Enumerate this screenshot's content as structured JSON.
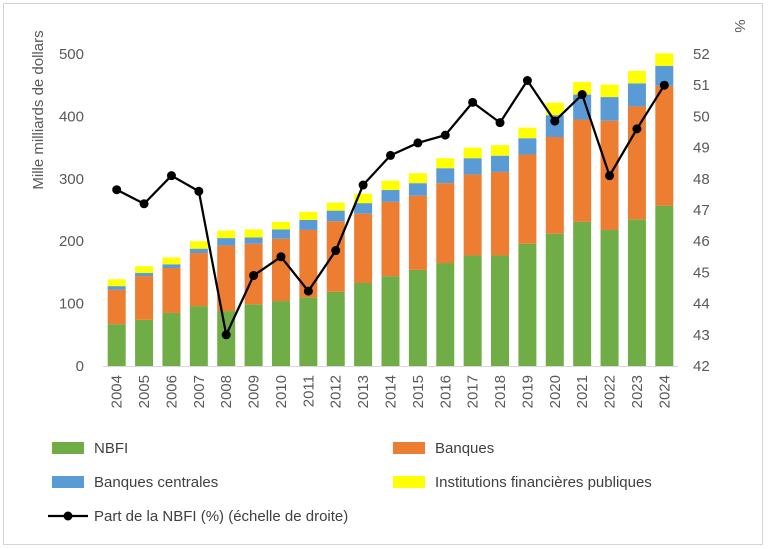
{
  "chart_data": {
    "type": "bar",
    "stacked": true,
    "categories": [
      "2004",
      "2005",
      "2006",
      "2007",
      "2008",
      "2009",
      "2010",
      "2011",
      "2012",
      "2013",
      "2014",
      "2015",
      "2016",
      "2017",
      "2018",
      "2019",
      "2020",
      "2021",
      "2022",
      "2023",
      "2024"
    ],
    "series": [
      {
        "name": "NBFI",
        "color": "#70ad47",
        "values": [
          67,
          74,
          85,
          96,
          88,
          99,
          104,
          110,
          119,
          133,
          144,
          154,
          165,
          177,
          177,
          196,
          212,
          231,
          218,
          235,
          257
        ]
      },
      {
        "name": "Banques",
        "color": "#ed7d31",
        "values": [
          55,
          70,
          72,
          85,
          105,
          97,
          100,
          108,
          113,
          111,
          119,
          119,
          128,
          130,
          134,
          143,
          155,
          164,
          175,
          181,
          192
        ]
      },
      {
        "name": "Banques centrales",
        "color": "#5b9bd5",
        "values": [
          6,
          5,
          6,
          7,
          12,
          10,
          15,
          16,
          17,
          17,
          19,
          20,
          24,
          26,
          26,
          26,
          35,
          40,
          38,
          37,
          32
        ]
      },
      {
        "name": "Institutions financières publiques",
        "color": "#ffff00",
        "values": [
          11,
          11,
          11,
          12,
          12,
          13,
          12,
          13,
          13,
          15,
          15,
          16,
          16,
          17,
          17,
          17,
          20,
          20,
          20,
          20,
          20
        ]
      }
    ],
    "line_series": {
      "name": "Part de la NBFI (%) (échelle de droite)",
      "axis": "right",
      "color": "#000000",
      "values": [
        47.65,
        47.2,
        48.1,
        47.6,
        43.0,
        44.9,
        45.5,
        44.4,
        45.7,
        47.8,
        48.75,
        49.15,
        49.4,
        50.45,
        49.8,
        51.15,
        49.85,
        50.7,
        48.1,
        49.6,
        51.0
      ]
    },
    "ylabel": "Mille milliards de dollars",
    "ylim": [
      0,
      500
    ],
    "yticks": [
      "0",
      "100",
      "200",
      "300",
      "400",
      "500"
    ],
    "y2label": "%",
    "y2lim": [
      42,
      52
    ],
    "y2ticks": [
      "42",
      "43",
      "44",
      "45",
      "46",
      "47",
      "48",
      "49",
      "50",
      "51",
      "52"
    ],
    "legend": [
      {
        "label": "NBFI",
        "kind": "box",
        "color": "#70ad47"
      },
      {
        "label": "Banques",
        "kind": "box",
        "color": "#ed7d31"
      },
      {
        "label": "Banques centrales",
        "kind": "box",
        "color": "#5b9bd5"
      },
      {
        "label": "Institutions financières publiques",
        "kind": "box",
        "color": "#ffff00"
      },
      {
        "label": "Part de la NBFI (%) (échelle de droite)",
        "kind": "line",
        "color": "#000000"
      }
    ],
    "legend_position": "bottom",
    "grid": false
  }
}
